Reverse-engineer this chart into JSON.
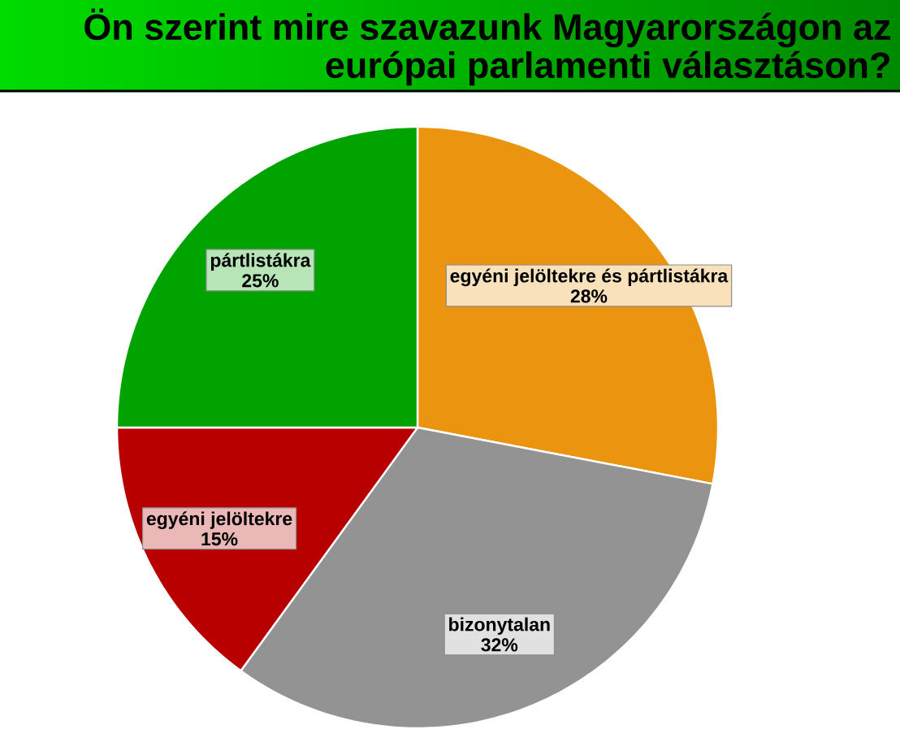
{
  "chart_data": {
    "type": "pie",
    "title": "Ön szerint mire szavazunk Magyarországon az európai parlamenti választáson?",
    "categories": [
      "egyéni jelöltekre és pártlistákra",
      "bizonytalan",
      "egyéni jelöltekre",
      "pártlistákra"
    ],
    "values": [
      28,
      32,
      15,
      25
    ],
    "value_labels": [
      "28%",
      "32%",
      "15%",
      "25%"
    ],
    "colors": [
      "#eb9410",
      "#939393",
      "#b80000",
      "#00a300"
    ]
  }
}
